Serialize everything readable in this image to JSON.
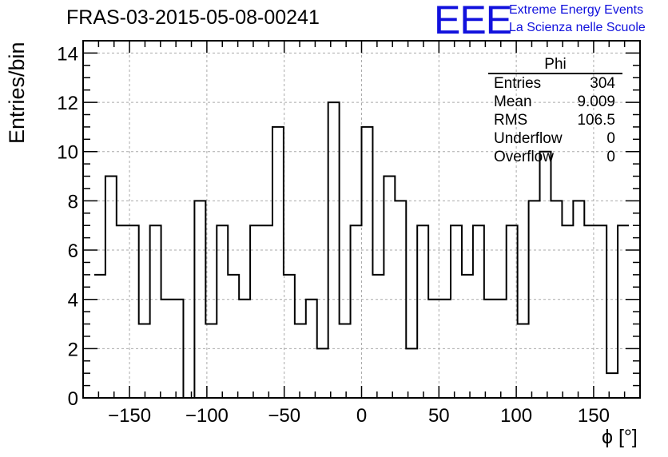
{
  "title": "FRAS-03-2015-05-08-00241",
  "logo": {
    "mark": "EEE",
    "line1": "Extreme Energy Events",
    "line2": "La Scienza nelle Scuole"
  },
  "stats": {
    "title": "Phi",
    "rows": [
      {
        "label": "Entries",
        "value": "304"
      },
      {
        "label": "Mean",
        "value": "9.009"
      },
      {
        "label": "RMS",
        "value": "106.5"
      },
      {
        "label": "Underflow",
        "value": "0"
      },
      {
        "label": "Overflow",
        "value": "0"
      }
    ]
  },
  "chart_data": {
    "type": "bar",
    "histogram": "step",
    "title": "FRAS-03-2015-05-08-00241",
    "xlabel": "ϕ [°]",
    "ylabel": "Entries/bin",
    "xlim": [
      -180,
      180
    ],
    "ylim": [
      0,
      14.5
    ],
    "grid": true,
    "bin_width": 7.2,
    "x_first_edge": -172.8,
    "xticks": [
      -150,
      -100,
      -50,
      0,
      50,
      100,
      150
    ],
    "xtick_labels": [
      "−150",
      "−100",
      "−50",
      "0",
      "50",
      "100",
      "150"
    ],
    "yticks": [
      0,
      2,
      4,
      6,
      8,
      10,
      12,
      14
    ],
    "ytick_labels": [
      "0",
      "2",
      "4",
      "6",
      "8",
      "10",
      "12",
      "14"
    ],
    "values": [
      5,
      9,
      7,
      7,
      3,
      7,
      4,
      4,
      0,
      8,
      3,
      7,
      5,
      4,
      7,
      7,
      11,
      5,
      3,
      4,
      2,
      12,
      3,
      7,
      11,
      5,
      9,
      8,
      2,
      7,
      4,
      4,
      7,
      5,
      7,
      4,
      4,
      7,
      3,
      8,
      10,
      8,
      7,
      8,
      7,
      7,
      1,
      7
    ]
  }
}
